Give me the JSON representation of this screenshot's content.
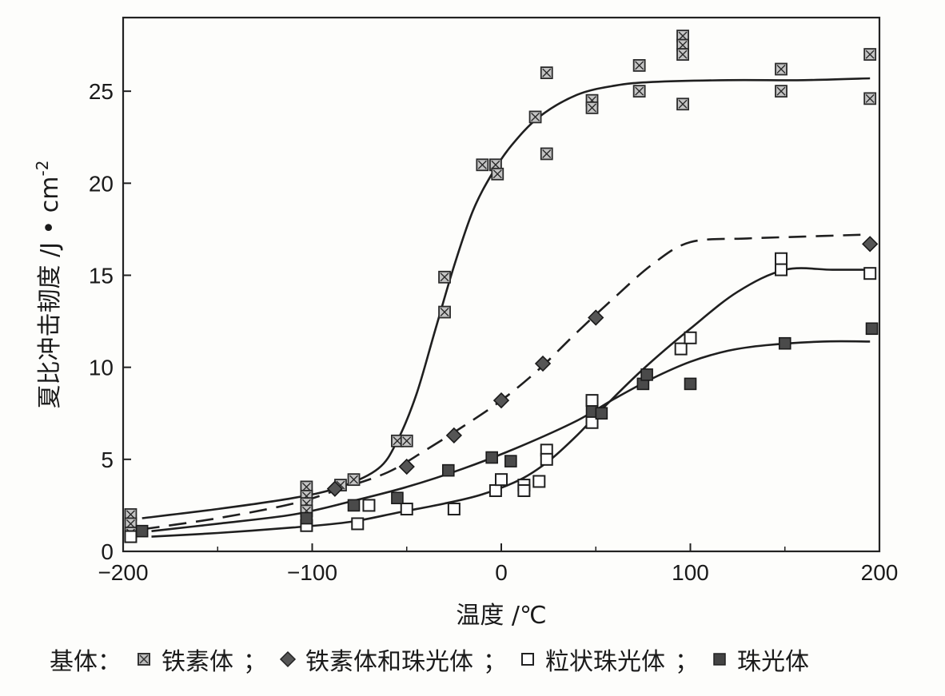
{
  "chart_data": {
    "type": "scatter",
    "xlabel": "温度 /℃",
    "ylabel": "夏比冲击韧度 /J·cm⁻²",
    "ylabel_main": "夏比冲击韧度 /J",
    "ylabel_unit": "cm",
    "ylabel_exp": "-2",
    "xlim": [
      -200,
      200
    ],
    "ylim": [
      0,
      29
    ],
    "xticks": [
      -200,
      -100,
      0,
      100,
      200
    ],
    "xtick_labels": [
      "−200",
      "−100",
      "0",
      "100",
      "200"
    ],
    "yticks": [
      0,
      5,
      10,
      15,
      20,
      25
    ],
    "grid": false,
    "legend_position": "bottom",
    "series": [
      {
        "name": "铁素体",
        "marker": "crossed-square",
        "line_style": "solid",
        "points": [
          [
            -196,
            2.0
          ],
          [
            -196,
            1.5
          ],
          [
            -196,
            1.0
          ],
          [
            -103,
            3.5
          ],
          [
            -103,
            3.0
          ],
          [
            -103,
            2.6
          ],
          [
            -103,
            2.2
          ],
          [
            -85,
            3.6
          ],
          [
            -78,
            3.9
          ],
          [
            -55,
            6.0
          ],
          [
            -50,
            6.0
          ],
          [
            -30,
            14.9
          ],
          [
            -30,
            13.0
          ],
          [
            -10,
            21.0
          ],
          [
            -3,
            21.0
          ],
          [
            -2,
            20.5
          ],
          [
            18,
            23.6
          ],
          [
            24,
            26.0
          ],
          [
            24,
            21.6
          ],
          [
            48,
            24.5
          ],
          [
            48,
            24.1
          ],
          [
            73,
            26.4
          ],
          [
            73,
            25.0
          ],
          [
            96,
            28.0
          ],
          [
            96,
            27.5
          ],
          [
            96,
            27.0
          ],
          [
            96,
            24.3
          ],
          [
            148,
            26.2
          ],
          [
            148,
            25.0
          ],
          [
            195,
            27.0
          ],
          [
            195,
            24.6
          ]
        ],
        "curve": [
          [
            -190,
            1.8
          ],
          [
            -150,
            2.3
          ],
          [
            -110,
            2.9
          ],
          [
            -85,
            3.5
          ],
          [
            -65,
            4.5
          ],
          [
            -55,
            6.0
          ],
          [
            -45,
            8.5
          ],
          [
            -35,
            12.0
          ],
          [
            -25,
            15.5
          ],
          [
            -15,
            18.5
          ],
          [
            -5,
            20.5
          ],
          [
            5,
            22.0
          ],
          [
            20,
            23.6
          ],
          [
            40,
            24.8
          ],
          [
            60,
            25.3
          ],
          [
            80,
            25.5
          ],
          [
            120,
            25.6
          ],
          [
            160,
            25.6
          ],
          [
            195,
            25.7
          ]
        ]
      },
      {
        "name": "铁素体和珠光体",
        "marker": "diamond",
        "line_style": "dashed",
        "points": [
          [
            -88,
            3.4
          ],
          [
            -50,
            4.6
          ],
          [
            -25,
            6.3
          ],
          [
            0,
            8.2
          ],
          [
            22,
            10.2
          ],
          [
            50,
            12.7
          ],
          [
            195,
            16.7
          ]
        ],
        "curve": [
          [
            -190,
            1.2
          ],
          [
            -150,
            1.8
          ],
          [
            -110,
            2.6
          ],
          [
            -85,
            3.4
          ],
          [
            -60,
            4.3
          ],
          [
            -40,
            5.5
          ],
          [
            -20,
            6.8
          ],
          [
            0,
            8.2
          ],
          [
            20,
            9.9
          ],
          [
            40,
            11.9
          ],
          [
            60,
            13.8
          ],
          [
            80,
            15.6
          ],
          [
            100,
            16.8
          ],
          [
            130,
            17.0
          ],
          [
            160,
            17.1
          ],
          [
            190,
            17.2
          ]
        ]
      },
      {
        "name": "粒状珠光体",
        "marker": "open-square",
        "line_style": "solid",
        "points": [
          [
            -196,
            0.8
          ],
          [
            -103,
            1.4
          ],
          [
            -76,
            1.5
          ],
          [
            -70,
            2.5
          ],
          [
            -50,
            2.3
          ],
          [
            -25,
            2.3
          ],
          [
            -3,
            3.3
          ],
          [
            0,
            3.9
          ],
          [
            12,
            3.6
          ],
          [
            12,
            3.3
          ],
          [
            20,
            3.8
          ],
          [
            24,
            5.5
          ],
          [
            24,
            5.0
          ],
          [
            48,
            8.2
          ],
          [
            48,
            7.0
          ],
          [
            95,
            11.0
          ],
          [
            100,
            11.6
          ],
          [
            148,
            15.9
          ],
          [
            148,
            15.3
          ],
          [
            195,
            15.1
          ]
        ],
        "curve": [
          [
            -185,
            0.8
          ],
          [
            -150,
            1.0
          ],
          [
            -110,
            1.3
          ],
          [
            -80,
            1.6
          ],
          [
            -55,
            2.1
          ],
          [
            -30,
            2.6
          ],
          [
            -10,
            3.1
          ],
          [
            10,
            3.9
          ],
          [
            25,
            4.9
          ],
          [
            40,
            6.3
          ],
          [
            55,
            7.9
          ],
          [
            75,
            9.9
          ],
          [
            100,
            12.1
          ],
          [
            125,
            14.1
          ],
          [
            150,
            15.3
          ],
          [
            175,
            15.3
          ],
          [
            195,
            15.3
          ]
        ]
      },
      {
        "name": "珠光体",
        "marker": "filled-square",
        "line_style": "solid",
        "points": [
          [
            -190,
            1.1
          ],
          [
            -103,
            1.8
          ],
          [
            -78,
            2.5
          ],
          [
            -55,
            2.9
          ],
          [
            -28,
            4.4
          ],
          [
            -5,
            5.1
          ],
          [
            5,
            4.9
          ],
          [
            48,
            7.6
          ],
          [
            53,
            7.5
          ],
          [
            75,
            9.1
          ],
          [
            77,
            9.6
          ],
          [
            100,
            9.1
          ],
          [
            150,
            11.3
          ],
          [
            196,
            12.1
          ]
        ],
        "curve": [
          [
            -185,
            1.1
          ],
          [
            -150,
            1.5
          ],
          [
            -110,
            2.0
          ],
          [
            -80,
            2.7
          ],
          [
            -50,
            3.5
          ],
          [
            -20,
            4.5
          ],
          [
            10,
            5.7
          ],
          [
            40,
            7.1
          ],
          [
            60,
            8.3
          ],
          [
            80,
            9.4
          ],
          [
            100,
            10.3
          ],
          [
            120,
            10.9
          ],
          [
            140,
            11.2
          ],
          [
            170,
            11.4
          ],
          [
            195,
            11.4
          ]
        ]
      }
    ]
  },
  "legend": {
    "lead": "基体：",
    "items": [
      {
        "label": "铁素体",
        "sep": "；"
      },
      {
        "label": "铁素体和珠光体",
        "sep": "；"
      },
      {
        "label": "粒状珠光体",
        "sep": "；"
      },
      {
        "label": "珠光体",
        "sep": ""
      }
    ]
  }
}
